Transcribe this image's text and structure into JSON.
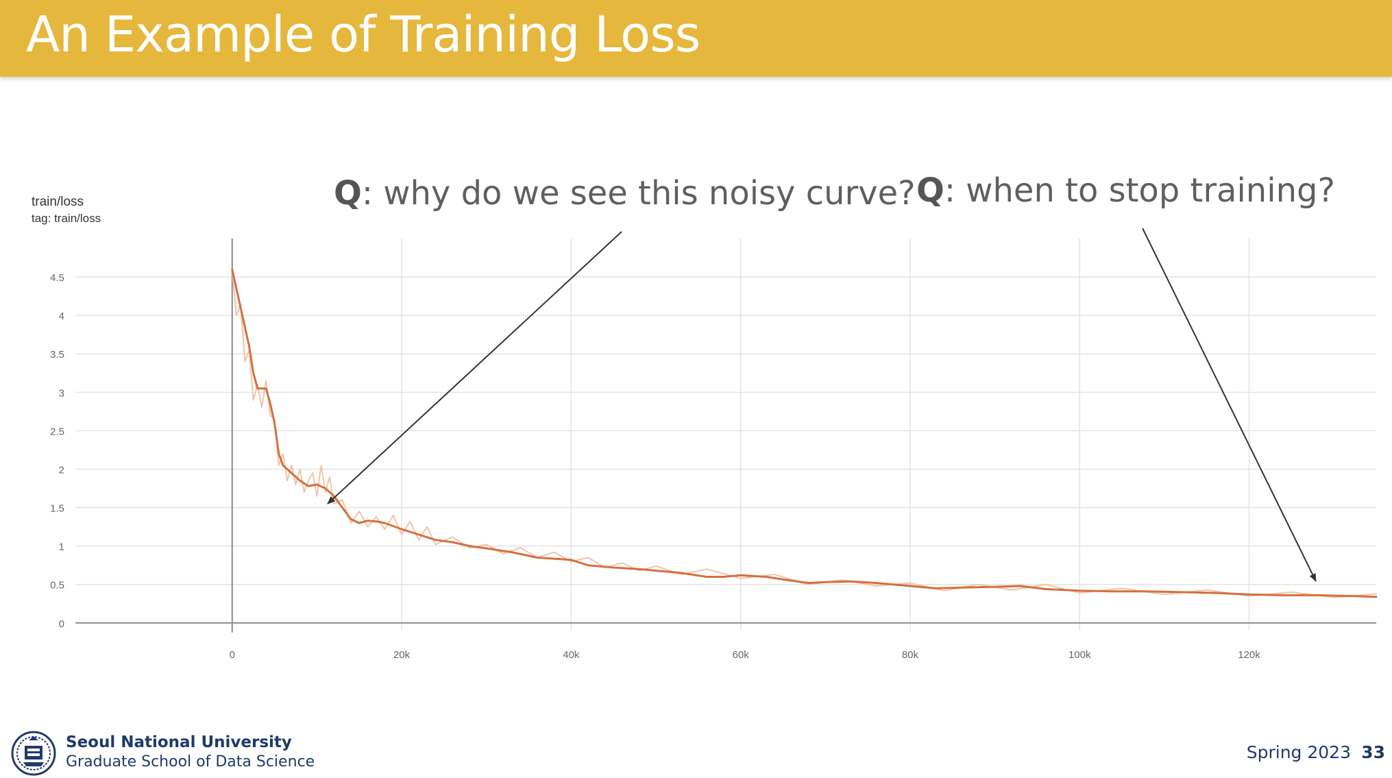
{
  "slide": {
    "title": "An Example of Training Loss",
    "question1_prefix": "Q",
    "question1_text": ": why do we see this noisy curve?",
    "question2_prefix": "Q",
    "question2_text": ": when to stop training?",
    "footer_university": "Seoul National University",
    "footer_school": "Graduate School of Data Science",
    "footer_term": "Spring 2023",
    "page_number": "33"
  },
  "chart_labels": {
    "name": "train/loss",
    "tag": "tag: train/loss"
  },
  "colors": {
    "title_bar": "#e5b83d",
    "smoothed_line": "#d4703f",
    "raw_line": "#f1c4a8",
    "grid": "#e3e3e3",
    "footer_text": "#1f3a6b"
  },
  "chart_data": {
    "type": "line",
    "title": "train/loss",
    "xlabel": "",
    "ylabel": "",
    "xlim": [
      -18500,
      135000
    ],
    "ylim": [
      -0.1,
      5.0
    ],
    "x_ticks": [
      0,
      20000,
      40000,
      60000,
      80000,
      100000,
      120000
    ],
    "x_tick_labels": [
      "0",
      "20k",
      "40k",
      "60k",
      "80k",
      "100k",
      "120k"
    ],
    "y_ticks": [
      0,
      0.5,
      1,
      1.5,
      2,
      2.5,
      3,
      3.5,
      4,
      4.5
    ],
    "y_tick_labels": [
      "0",
      "0.5",
      "1",
      "1.5",
      "2",
      "2.5",
      "3",
      "3.5",
      "4",
      "4.5"
    ],
    "grid": true,
    "series": [
      {
        "style": "smoothed",
        "x": [
          0,
          500,
          1000,
          2000,
          2500,
          3000,
          4000,
          4500,
          5000,
          5500,
          6000,
          6500,
          7000,
          8000,
          9000,
          10000,
          11000,
          12000,
          13000,
          14000,
          15000,
          16000,
          17000,
          18000,
          20000,
          22000,
          24000,
          26000,
          28000,
          30000,
          33000,
          36000,
          40000,
          42000,
          45000,
          48000,
          50000,
          53000,
          56000,
          58000,
          60000,
          63000,
          66000,
          68000,
          70000,
          73000,
          76000,
          80000,
          83000,
          86000,
          90000,
          93000,
          96000,
          100000,
          104000,
          108000,
          112000,
          116000,
          120000,
          124000,
          128000,
          132000,
          135000
        ],
        "y": [
          4.6,
          4.35,
          4.1,
          3.6,
          3.25,
          3.05,
          3.05,
          2.85,
          2.6,
          2.2,
          2.05,
          2.0,
          1.95,
          1.85,
          1.78,
          1.8,
          1.75,
          1.65,
          1.5,
          1.35,
          1.3,
          1.33,
          1.32,
          1.3,
          1.22,
          1.15,
          1.08,
          1.05,
          1.0,
          0.97,
          0.92,
          0.85,
          0.82,
          0.75,
          0.72,
          0.7,
          0.68,
          0.65,
          0.6,
          0.6,
          0.62,
          0.6,
          0.55,
          0.52,
          0.53,
          0.54,
          0.52,
          0.48,
          0.45,
          0.46,
          0.47,
          0.48,
          0.44,
          0.42,
          0.41,
          0.41,
          0.4,
          0.39,
          0.37,
          0.36,
          0.36,
          0.35,
          0.34
        ]
      },
      {
        "style": "raw",
        "x": [
          0,
          500,
          1000,
          1500,
          2000,
          2500,
          3000,
          3500,
          4000,
          4500,
          5000,
          5500,
          6000,
          6500,
          7000,
          7500,
          8000,
          8500,
          9000,
          9500,
          10000,
          10500,
          11000,
          11500,
          12000,
          13000,
          14000,
          15000,
          16000,
          17000,
          18000,
          19000,
          20000,
          21000,
          22000,
          23000,
          24000,
          26000,
          28000,
          30000,
          32000,
          34000,
          36000,
          38000,
          40000,
          42000,
          44000,
          46000,
          48000,
          50000,
          53000,
          56000,
          60000,
          64000,
          68000,
          72000,
          76000,
          80000,
          84000,
          88000,
          92000,
          96000,
          100000,
          105000,
          110000,
          115000,
          120000,
          125000,
          130000,
          135000
        ],
        "y": [
          4.6,
          4.0,
          4.15,
          3.4,
          3.55,
          2.9,
          3.1,
          2.8,
          3.15,
          2.7,
          2.65,
          2.05,
          2.2,
          1.85,
          2.05,
          1.8,
          2.0,
          1.7,
          1.85,
          1.95,
          1.65,
          2.05,
          1.7,
          1.9,
          1.55,
          1.6,
          1.3,
          1.45,
          1.25,
          1.38,
          1.22,
          1.4,
          1.15,
          1.32,
          1.08,
          1.25,
          1.02,
          1.12,
          0.98,
          1.02,
          0.9,
          0.98,
          0.85,
          0.92,
          0.8,
          0.85,
          0.72,
          0.78,
          0.68,
          0.74,
          0.63,
          0.7,
          0.58,
          0.63,
          0.5,
          0.56,
          0.48,
          0.52,
          0.42,
          0.5,
          0.43,
          0.5,
          0.39,
          0.45,
          0.37,
          0.43,
          0.35,
          0.4,
          0.33,
          0.38
        ]
      }
    ]
  }
}
